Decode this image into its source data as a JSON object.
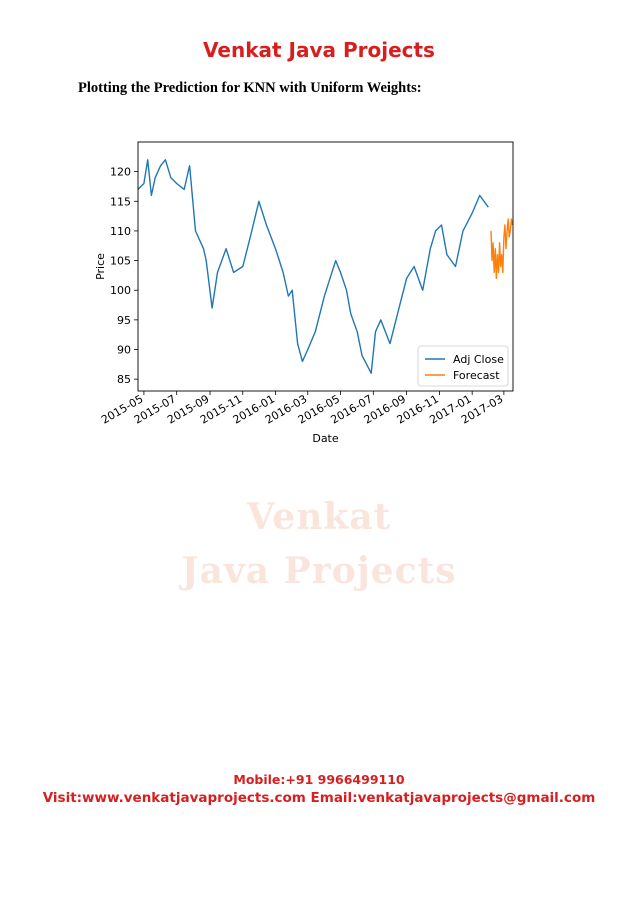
{
  "header": {
    "title": "Venkat Java Projects"
  },
  "section": {
    "heading": "Plotting the Prediction for KNN with Uniform Weights:"
  },
  "watermark": {
    "line1": "Venkat",
    "line2": "Java Projects"
  },
  "footer": {
    "mobile": "Mobile:+91 9966499110",
    "visit": "Visit:www.venkatjavaprojects.com Email:venkatjavaprojects@gmail.com"
  },
  "colors": {
    "accent": "#d81e1e",
    "adj_close": "#1f77b4",
    "forecast": "#ff7f0e"
  },
  "chart_data": {
    "type": "line",
    "title": "",
    "xlabel": "Date",
    "ylabel": "Price",
    "xlim": [
      "2015-04-20",
      "2017-03-18"
    ],
    "ylim": [
      83,
      125
    ],
    "x_ticks": [
      "2015-05",
      "2015-07",
      "2015-09",
      "2015-11",
      "2016-01",
      "2016-03",
      "2016-05",
      "2016-07",
      "2016-09",
      "2016-11",
      "2017-01",
      "2017-03"
    ],
    "y_ticks": [
      85,
      90,
      95,
      100,
      105,
      110,
      115,
      120
    ],
    "legend_position": "lower-right",
    "series": [
      {
        "name": "Adj Close",
        "color": "#1f77b4",
        "x": [
          "2015-04-20",
          "2015-05-01",
          "2015-05-08",
          "2015-05-15",
          "2015-05-22",
          "2015-06-01",
          "2015-06-10",
          "2015-06-20",
          "2015-07-01",
          "2015-07-15",
          "2015-07-25",
          "2015-08-05",
          "2015-08-20",
          "2015-08-25",
          "2015-09-05",
          "2015-09-15",
          "2015-10-01",
          "2015-10-15",
          "2015-11-01",
          "2015-11-15",
          "2015-12-01",
          "2015-12-15",
          "2016-01-01",
          "2016-01-15",
          "2016-01-25",
          "2016-02-01",
          "2016-02-11",
          "2016-02-20",
          "2016-03-01",
          "2016-03-15",
          "2016-04-01",
          "2016-04-15",
          "2016-04-22",
          "2016-05-01",
          "2016-05-12",
          "2016-05-20",
          "2016-06-01",
          "2016-06-10",
          "2016-06-27",
          "2016-07-05",
          "2016-07-15",
          "2016-08-01",
          "2016-08-15",
          "2016-09-01",
          "2016-09-15",
          "2016-10-01",
          "2016-10-15",
          "2016-10-25",
          "2016-11-05",
          "2016-11-15",
          "2016-12-01",
          "2016-12-15",
          "2017-01-01",
          "2017-01-15",
          "2017-01-31"
        ],
        "values": [
          117,
          118,
          122,
          116,
          119,
          121,
          122,
          119,
          118,
          117,
          121,
          110,
          107,
          105,
          97,
          103,
          107,
          103,
          104,
          109,
          115,
          111,
          107,
          103,
          99,
          100,
          91,
          88,
          90,
          93,
          99,
          103,
          105,
          103,
          100,
          96,
          93,
          89,
          86,
          93,
          95,
          91,
          96,
          102,
          104,
          100,
          107,
          110,
          111,
          106,
          104,
          110,
          113,
          116,
          114
        ]
      },
      {
        "name": "Forecast",
        "color": "#ff7f0e",
        "x": [
          "2017-02-05",
          "2017-02-07",
          "2017-02-09",
          "2017-02-11",
          "2017-02-13",
          "2017-02-15",
          "2017-02-17",
          "2017-02-19",
          "2017-02-21",
          "2017-02-23",
          "2017-02-25",
          "2017-02-27",
          "2017-03-01",
          "2017-03-03",
          "2017-03-05",
          "2017-03-07",
          "2017-03-09",
          "2017-03-11",
          "2017-03-13",
          "2017-03-15",
          "2017-03-17"
        ],
        "values": [
          110,
          105,
          108,
          103,
          107,
          102,
          106,
          103,
          108,
          104,
          106,
          103,
          109,
          111,
          107,
          110,
          112,
          109,
          110,
          112,
          111
        ]
      }
    ]
  }
}
